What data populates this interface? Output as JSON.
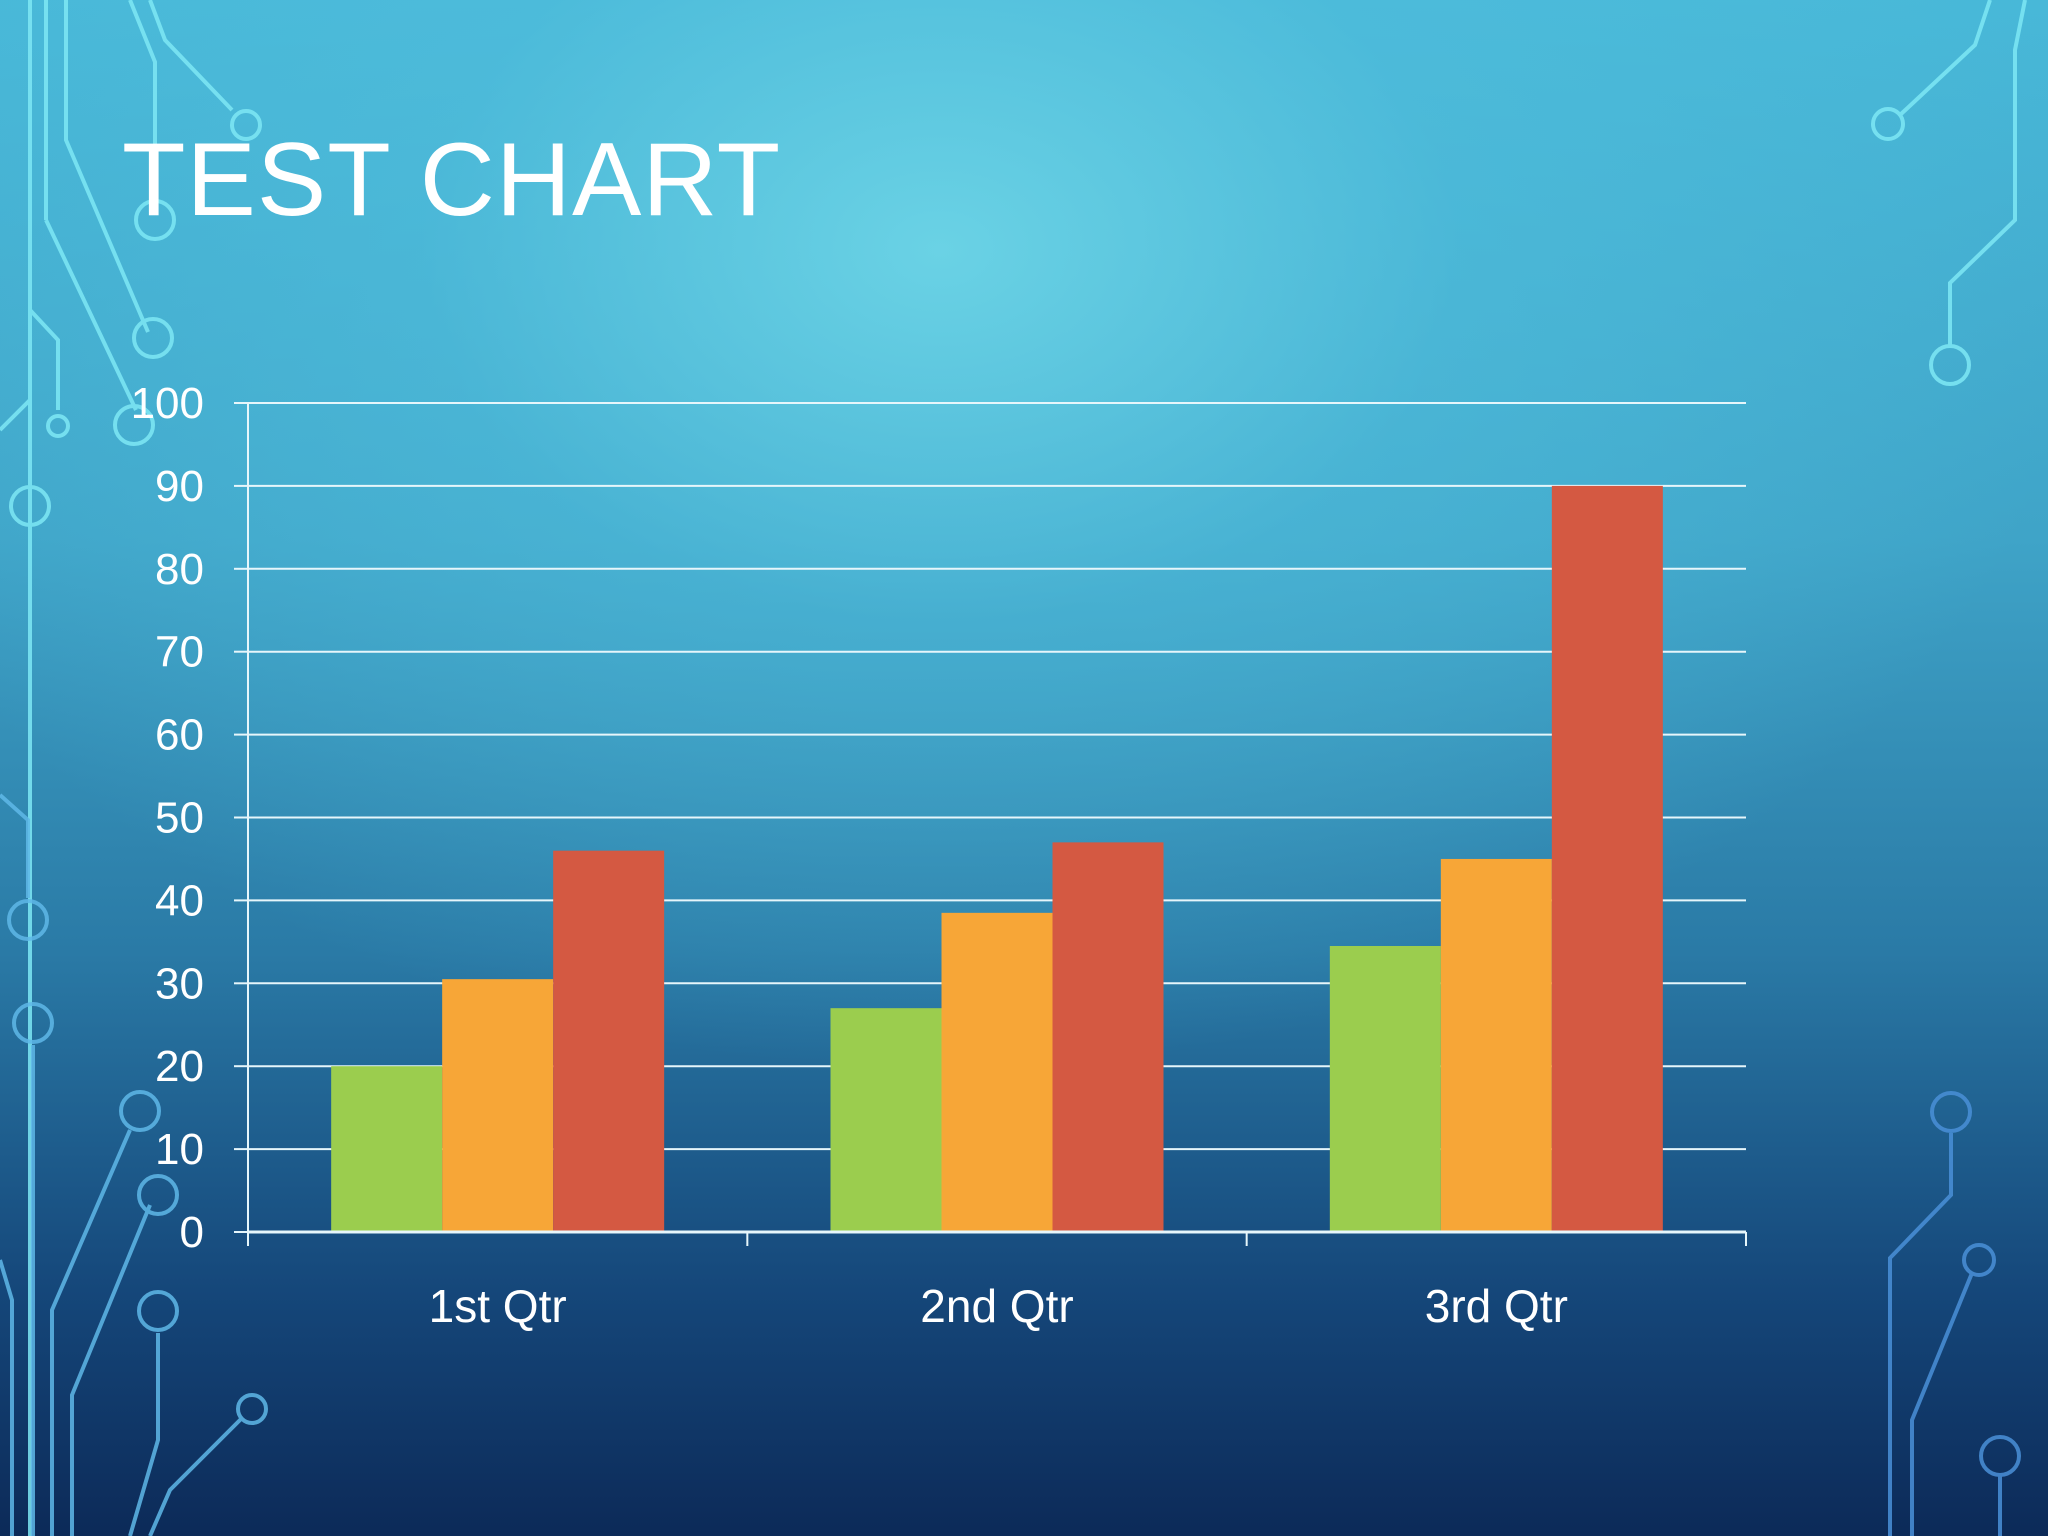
{
  "slide": {
    "title": "TEST CHART"
  },
  "chart_data": {
    "type": "bar",
    "title": "",
    "xlabel": "",
    "ylabel": "",
    "categories": [
      "1st Qtr",
      "2nd Qtr",
      "3rd Qtr"
    ],
    "series": [
      {
        "values": [
          20,
          27,
          34.5
        ],
        "color": "#9bcd4e"
      },
      {
        "values": [
          30.5,
          38.5,
          45
        ],
        "color": "#f7a637"
      },
      {
        "values": [
          46,
          47,
          90
        ],
        "color": "#d45942"
      }
    ],
    "ylim": [
      0,
      100
    ],
    "yticks": [
      0,
      10,
      20,
      30,
      40,
      50,
      60,
      70,
      80,
      90,
      100
    ],
    "grid": true,
    "legend": "none"
  }
}
